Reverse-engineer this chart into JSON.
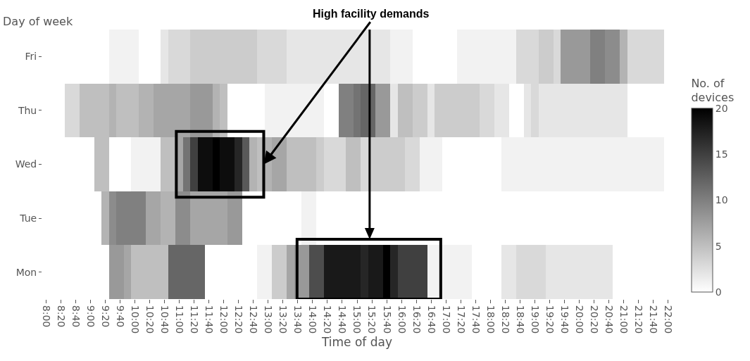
{
  "chart_data": {
    "type": "heatmap",
    "xlabel": "Time of day",
    "ylabel": "Day of week",
    "clabel": "No. of devices",
    "categories": [
      "8:00",
      null,
      "8:20",
      null,
      "8:40",
      null,
      "9:00",
      null,
      "9:20",
      null,
      "9:40",
      null,
      "10:00",
      null,
      "10:20",
      null,
      "10:40",
      null,
      "11:00",
      null,
      "11:20",
      null,
      "11:40",
      null,
      "12:00",
      null,
      "12:20",
      null,
      "12:40",
      null,
      "13:00",
      null,
      "13:20",
      null,
      "13:40",
      null,
      "14:00",
      null,
      "14:20",
      null,
      "14:40",
      null,
      "15:00",
      null,
      "15:20",
      null,
      "15:40",
      null,
      "16:00",
      null,
      "16:20",
      null,
      "16:40",
      null,
      "17:00",
      null,
      "17:20",
      null,
      "17:40",
      null,
      "18:00",
      null,
      "18:20",
      null,
      "18:40",
      null,
      "19:00",
      null,
      "19:20",
      null,
      "19:40",
      null,
      "20:00",
      null,
      "20:20",
      null,
      "20:40",
      null,
      "21:00",
      null,
      "21:20",
      null,
      "21:40",
      null,
      "22:00"
    ],
    "y_categories": [
      "Fri",
      "Thu",
      "Wed",
      "Tue",
      "Mon"
    ],
    "cells": [
      [
        0,
        0,
        0,
        0,
        0,
        0,
        0,
        0,
        0,
        1,
        1,
        1,
        1,
        0,
        0,
        0,
        2,
        3,
        3,
        3,
        4,
        4,
        4,
        4,
        4,
        4,
        4,
        4,
        4,
        3,
        3,
        3,
        3,
        2,
        2,
        2,
        2,
        2,
        2,
        2,
        2,
        2,
        2,
        2,
        2,
        2,
        2,
        1,
        1,
        1,
        0,
        0,
        0,
        0,
        0,
        0,
        1,
        1,
        1,
        1,
        1,
        1,
        1,
        1,
        3,
        3,
        3,
        4,
        4,
        3,
        8,
        8,
        8,
        8,
        10,
        10,
        9,
        9,
        6,
        3,
        3,
        3,
        3,
        3,
        0
      ],
      [
        0,
        0,
        0,
        3,
        3,
        5,
        5,
        5,
        5,
        6,
        5,
        5,
        5,
        6,
        6,
        7,
        7,
        7,
        7,
        7,
        8,
        8,
        8,
        6,
        5,
        0,
        0,
        0,
        0,
        0,
        1,
        1,
        1,
        1,
        1,
        1,
        1,
        1,
        0,
        0,
        10,
        10,
        11,
        12,
        12,
        8,
        8,
        2,
        5,
        5,
        4,
        4,
        2,
        4,
        4,
        4,
        4,
        4,
        4,
        3,
        3,
        2,
        2,
        0,
        0,
        2,
        3,
        2,
        2,
        2,
        2,
        2,
        2,
        2,
        2,
        2,
        2,
        2,
        2,
        0,
        0,
        0,
        0,
        0,
        0
      ],
      [
        0,
        0,
        0,
        0,
        0,
        0,
        0,
        5,
        5,
        0,
        0,
        0,
        1,
        1,
        1,
        1,
        5,
        5,
        7,
        11,
        15,
        19,
        19,
        20,
        19,
        19,
        17,
        13,
        6,
        5,
        6,
        7,
        7,
        5,
        5,
        5,
        5,
        4,
        3,
        3,
        3,
        5,
        5,
        3,
        4,
        4,
        4,
        4,
        4,
        3,
        3,
        1,
        1,
        1,
        0,
        0,
        0,
        0,
        0,
        0,
        0,
        0,
        1,
        1,
        1,
        1,
        1,
        1,
        1,
        1,
        1,
        1,
        1,
        1,
        1,
        1,
        1,
        1,
        1,
        1,
        1,
        1,
        1,
        1,
        0
      ],
      [
        0,
        0,
        0,
        0,
        0,
        0,
        0,
        0,
        6,
        9,
        10,
        10,
        10,
        10,
        7,
        7,
        6,
        6,
        9,
        9,
        7,
        7,
        7,
        7,
        7,
        8,
        8,
        0,
        0,
        0,
        0,
        0,
        0,
        0,
        0,
        1,
        1,
        0,
        0,
        0,
        0,
        0,
        0,
        0,
        0,
        0,
        0,
        0,
        0,
        0,
        0,
        0,
        0,
        0,
        0,
        0,
        0,
        0,
        0,
        0,
        0,
        0,
        0,
        0,
        0,
        0,
        0,
        0,
        0,
        0,
        0,
        0,
        0,
        0,
        0,
        0,
        0,
        0,
        0,
        0,
        0,
        0,
        0,
        0,
        0
      ],
      [
        0,
        0,
        0,
        0,
        0,
        0,
        0,
        0,
        0,
        8,
        8,
        7,
        5,
        5,
        5,
        5,
        5,
        12,
        12,
        12,
        12,
        12,
        0,
        0,
        0,
        0,
        0,
        0,
        0,
        1,
        1,
        4,
        4,
        7,
        8,
        8,
        14,
        14,
        18,
        18,
        18,
        18,
        18,
        17,
        18,
        18,
        20,
        17,
        15,
        15,
        15,
        15,
        1,
        1,
        1,
        1,
        1,
        1,
        0,
        0,
        0,
        0,
        2,
        2,
        3,
        3,
        3,
        3,
        2,
        2,
        2,
        2,
        2,
        2,
        2,
        2,
        2,
        0,
        0,
        0,
        0,
        0,
        0,
        0,
        0
      ]
    ],
    "clim": [
      0,
      20
    ],
    "cticks": [
      0,
      5,
      10,
      15,
      20
    ],
    "annotations": [
      "High facility demands"
    ]
  }
}
